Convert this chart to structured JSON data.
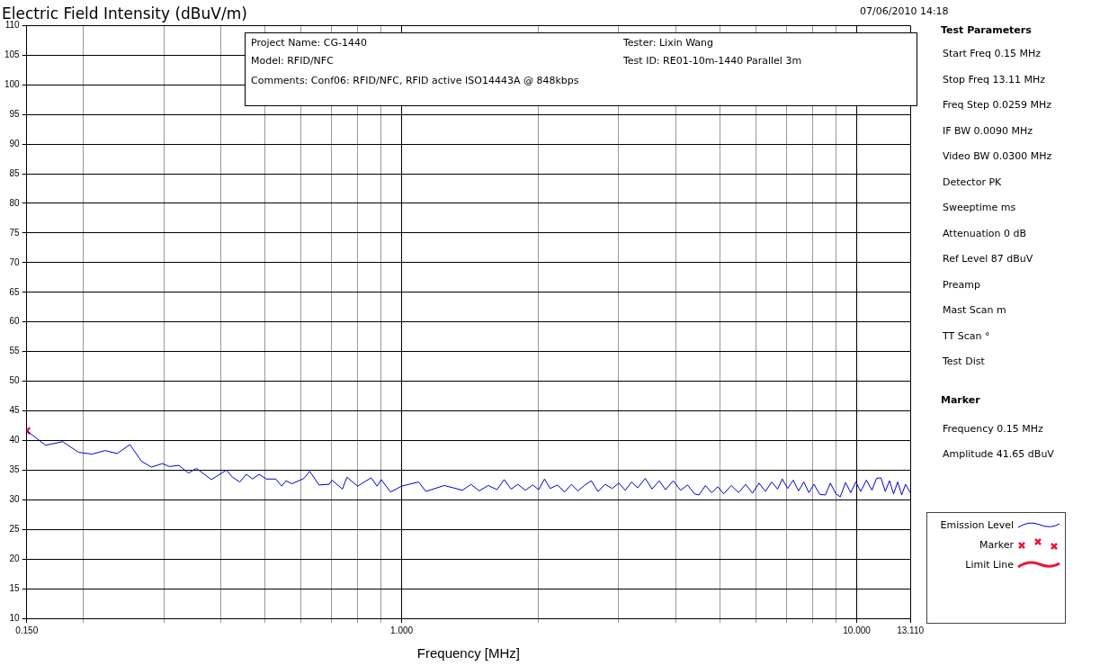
{
  "chart_data": {
    "type": "line",
    "title": "Electric Field Intensity (dBuV/m)",
    "xlabel": "Frequency [MHz]",
    "annotations": [
      "07/06/2010  14:18",
      "Project Name: CG-1440",
      "Tester: Lixin Wang",
      "Model: RFID/NFC",
      "Test ID: RE01-10m-1440 Parallel 3m",
      "Comments: Conf06: RFID/NFC, RFID active ISO14443A @ 848kbps",
      "Test Parameters",
      "Start Freq   0.15   MHz",
      "Stop Freq   13.11   MHz",
      "Freq Step   0.0259   MHz",
      "IF BW   0.0090   MHz",
      "Video BW   0.0300   MHz",
      "Detector   PK",
      "Sweeptime   ms",
      "Attenuation   0   dB",
      "Ref Level   87   dBuV",
      "Preamp",
      "Mast Scan   m",
      "TT Scan   °",
      "Test Dist",
      "Marker",
      "Frequency   0.15   MHz",
      "Amplitude   41.65   dBuV"
    ],
    "series": [
      {
        "name": "Emission Level",
        "color": "#0000cc",
        "marker": "none",
        "x": [
          0.15,
          0.165,
          0.18,
          0.195,
          0.209,
          0.223,
          0.237,
          0.253,
          0.268,
          0.282,
          0.298,
          0.309,
          0.324,
          0.34,
          0.354,
          0.382,
          0.412,
          0.425,
          0.441,
          0.456,
          0.47,
          0.486,
          0.504,
          0.529,
          0.545,
          0.557,
          0.574,
          0.61,
          0.628,
          0.658,
          0.693,
          0.703,
          0.741,
          0.758,
          0.8,
          0.857,
          0.883,
          0.902,
          0.945,
          1.0,
          1.09,
          1.13,
          1.24,
          1.3,
          1.36,
          1.42,
          1.48,
          1.55,
          1.62,
          1.68,
          1.74,
          1.8,
          1.87,
          1.94,
          2.0,
          2.06,
          2.12,
          2.2,
          2.28,
          2.36,
          2.44,
          2.52,
          2.61,
          2.7,
          2.8,
          2.9,
          3.0,
          3.1,
          3.2,
          3.3,
          3.43,
          3.55,
          3.68,
          3.8,
          3.95,
          4.1,
          4.25,
          4.4,
          4.5,
          4.65,
          4.8,
          4.95,
          5.1,
          5.3,
          5.5,
          5.7,
          5.9,
          6.1,
          6.3,
          6.5,
          6.7,
          6.86,
          7.05,
          7.25,
          7.45,
          7.65,
          7.85,
          8.05,
          8.3,
          8.53,
          8.75,
          9.0,
          9.2,
          9.45,
          9.7,
          9.95,
          10.2,
          10.5,
          10.8,
          11.05,
          11.3,
          11.55,
          11.8,
          12.05,
          12.3,
          12.55,
          12.8,
          13.11
        ],
        "values": [
          41.65,
          39.2,
          39.8,
          38.0,
          37.7,
          38.3,
          37.8,
          39.3,
          36.5,
          35.5,
          36.1,
          35.6,
          35.8,
          34.5,
          35.3,
          33.4,
          35.0,
          33.8,
          33.0,
          34.3,
          33.5,
          34.3,
          33.5,
          33.5,
          32.3,
          33.2,
          32.7,
          33.6,
          34.8,
          32.5,
          32.6,
          33.3,
          31.8,
          33.8,
          32.3,
          33.7,
          32.3,
          33.4,
          31.3,
          32.3,
          33.0,
          31.4,
          32.4,
          32.0,
          31.6,
          32.6,
          31.5,
          32.4,
          31.7,
          33.4,
          31.8,
          32.6,
          31.6,
          32.5,
          31.7,
          33.5,
          31.9,
          32.5,
          31.3,
          32.6,
          31.5,
          32.4,
          33.2,
          31.4,
          32.6,
          31.9,
          32.8,
          31.6,
          33.0,
          32.0,
          33.6,
          31.8,
          33.2,
          31.7,
          33.2,
          31.6,
          32.5,
          31.0,
          30.8,
          32.4,
          31.2,
          32.2,
          31.0,
          32.4,
          31.2,
          32.6,
          31.1,
          32.8,
          31.4,
          33.0,
          31.8,
          33.5,
          31.9,
          33.3,
          31.5,
          33.0,
          31.2,
          32.6,
          30.9,
          30.8,
          32.8,
          31.0,
          30.5,
          32.9,
          31.2,
          33.0,
          31.4,
          33.3,
          31.6,
          33.6,
          33.7,
          31.4,
          33.2,
          31.0,
          33.0,
          30.8,
          32.6,
          31.2
        ]
      },
      {
        "name": "Marker",
        "type": "scatter",
        "color": "#e8183c",
        "marker": "cross",
        "x": [
          0.15
        ],
        "values": [
          41.65
        ]
      },
      {
        "name": "Limit Line",
        "color": "#e8183c",
        "marker": "none"
      }
    ],
    "log": "x",
    "xlim": [
      0.15,
      13.11
    ],
    "ylim": [
      10,
      110
    ],
    "xticks": [
      {
        "value": 0.15,
        "label": "0.150"
      },
      {
        "value": 0.2,
        "label": null
      },
      {
        "value": 0.3,
        "label": null
      },
      {
        "value": 0.4,
        "label": null
      },
      {
        "value": 0.5,
        "label": null
      },
      {
        "value": 0.6,
        "label": null
      },
      {
        "value": 0.7,
        "label": null
      },
      {
        "value": 0.8,
        "label": null
      },
      {
        "value": 0.9,
        "label": null
      },
      {
        "value": 1,
        "label": "1.000"
      },
      {
        "value": 2,
        "label": null
      },
      {
        "value": 3,
        "label": null
      },
      {
        "value": 4,
        "label": null
      },
      {
        "value": 5,
        "label": null
      },
      {
        "value": 6,
        "label": null
      },
      {
        "value": 7,
        "label": null
      },
      {
        "value": 8,
        "label": null
      },
      {
        "value": 9,
        "label": null
      },
      {
        "value": 10,
        "label": "10.000"
      },
      {
        "value": 13.11,
        "label": "13.110"
      }
    ],
    "yticks": [
      10,
      15,
      20,
      25,
      30,
      35,
      40,
      45,
      50,
      55,
      60,
      65,
      70,
      75,
      80,
      85,
      90,
      95,
      100,
      105,
      110
    ],
    "grid": true,
    "legend": "bottom right"
  }
}
